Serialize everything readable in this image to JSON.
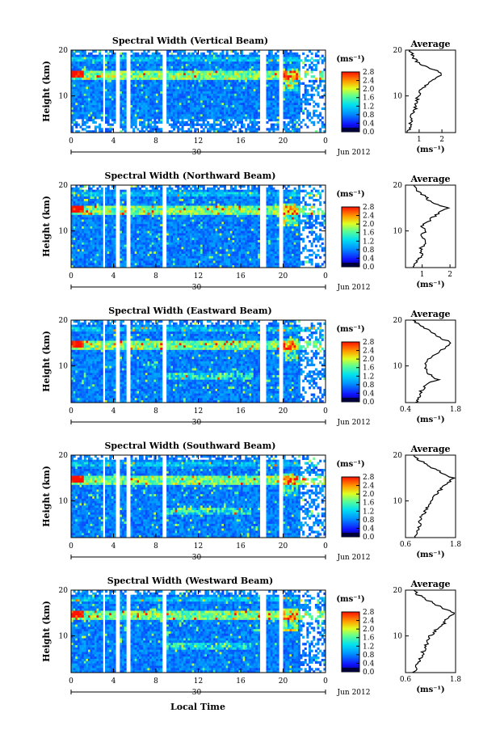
{
  "figure": {
    "xlabel": "Local Time",
    "date_label": "Jun 2012",
    "day_label": "30",
    "colorbar_unit": "(ms⁻¹)",
    "avg_title": "Average",
    "avg_xunit": "(ms⁻¹)"
  },
  "chart_data": [
    {
      "type": "heatmap",
      "title": "Spectral Width (Vertical Beam)",
      "ylabel": "Height (km)",
      "xlabel": "Local Time",
      "x_ticks": [
        "0",
        "4",
        "8",
        "12",
        "16",
        "20",
        "0"
      ],
      "y_ticks": [
        "20",
        "10"
      ],
      "ylim": [
        2,
        20
      ],
      "xlim": [
        0,
        24
      ],
      "colorbar": {
        "ticks": [
          "2.8",
          "2.4",
          "2.0",
          "1.6",
          "1.2",
          "0.8",
          "0.4",
          "0.0"
        ],
        "range": [
          0,
          2.8
        ]
      },
      "data_gaps_hours": [
        [
          3.0,
          3.2
        ],
        [
          4.2,
          4.5
        ],
        [
          5.2,
          5.5
        ],
        [
          8.6,
          9.0
        ],
        [
          17.8,
          18.3
        ],
        [
          19.7,
          20.0
        ]
      ],
      "average_profile": {
        "title": "Average",
        "x_ticks": [
          "1",
          "2"
        ],
        "xlim": [
          0.4,
          2.6
        ],
        "y_ticks": [
          "20",
          "10"
        ],
        "height_km": [
          2,
          3,
          4,
          5,
          6,
          7,
          8,
          9,
          10,
          11,
          12,
          13,
          14,
          15,
          16,
          17,
          18,
          19,
          20
        ],
        "value": [
          0.5,
          0.55,
          0.6,
          0.65,
          0.7,
          0.8,
          0.85,
          0.9,
          0.95,
          1.05,
          1.2,
          1.5,
          1.8,
          2.0,
          1.5,
          1.0,
          0.8,
          0.7,
          0.6
        ]
      }
    },
    {
      "type": "heatmap",
      "title": "Spectral Width (Northward Beam)",
      "ylabel": "Height (km)",
      "xlabel": "Local Time",
      "x_ticks": [
        "0",
        "4",
        "8",
        "12",
        "16",
        "20",
        "0"
      ],
      "y_ticks": [
        "20",
        "10"
      ],
      "ylim": [
        2,
        20
      ],
      "xlim": [
        0,
        24
      ],
      "colorbar": {
        "ticks": [
          "2.8",
          "2.4",
          "2.0",
          "1.6",
          "1.2",
          "0.8",
          "0.4",
          "0.0"
        ],
        "range": [
          0,
          2.8
        ]
      },
      "data_gaps_hours": [
        [
          3.0,
          3.2
        ],
        [
          4.2,
          4.5
        ],
        [
          5.2,
          5.5
        ],
        [
          8.6,
          9.0
        ],
        [
          17.8,
          18.3
        ],
        [
          19.7,
          20.0
        ]
      ],
      "average_profile": {
        "title": "Average",
        "x_ticks": [
          "1",
          "2"
        ],
        "xlim": [
          0.4,
          2.2
        ],
        "y_ticks": [
          "20",
          "10"
        ],
        "height_km": [
          2,
          3,
          4,
          5,
          6,
          7,
          8,
          9,
          10,
          11,
          12,
          13,
          14,
          15,
          16,
          17,
          18,
          19,
          20
        ],
        "value": [
          0.7,
          0.8,
          0.9,
          1.0,
          0.95,
          1.05,
          1.1,
          1.0,
          1.1,
          1.0,
          1.2,
          1.4,
          1.6,
          1.9,
          1.4,
          1.2,
          1.0,
          0.8,
          0.7
        ]
      }
    },
    {
      "type": "heatmap",
      "title": "Spectral Width (Eastward Beam)",
      "ylabel": "Height (km)",
      "xlabel": "Local Time",
      "x_ticks": [
        "0",
        "4",
        "8",
        "12",
        "16",
        "20",
        "0"
      ],
      "y_ticks": [
        "20",
        "10"
      ],
      "ylim": [
        2,
        20
      ],
      "xlim": [
        0,
        24
      ],
      "colorbar": {
        "ticks": [
          "2.8",
          "2.4",
          "2.0",
          "1.6",
          "1.2",
          "0.8",
          "0.4",
          "0.0"
        ],
        "range": [
          0,
          2.8
        ]
      },
      "data_gaps_hours": [
        [
          3.0,
          3.2
        ],
        [
          4.2,
          4.5
        ],
        [
          5.2,
          5.5
        ],
        [
          8.6,
          9.0
        ],
        [
          17.8,
          18.3
        ],
        [
          19.7,
          20.0
        ]
      ],
      "average_profile": {
        "title": "Average",
        "x_ticks": [
          "0.4",
          "1.8"
        ],
        "xlim": [
          0.4,
          1.8
        ],
        "y_ticks": [
          "20",
          "10"
        ],
        "height_km": [
          2,
          3,
          4,
          5,
          6,
          7,
          8,
          9,
          10,
          11,
          12,
          13,
          14,
          15,
          16,
          17,
          18,
          19,
          20
        ],
        "value": [
          0.7,
          0.75,
          0.8,
          0.9,
          1.0,
          1.3,
          1.1,
          1.0,
          0.95,
          1.0,
          1.1,
          1.3,
          1.5,
          1.7,
          1.4,
          1.2,
          1.0,
          0.8,
          0.6
        ]
      }
    },
    {
      "type": "heatmap",
      "title": "Spectral Width (Southward Beam)",
      "ylabel": "Height (km)",
      "xlabel": "Local Time",
      "x_ticks": [
        "0",
        "4",
        "8",
        "12",
        "16",
        "20",
        "0"
      ],
      "y_ticks": [
        "20",
        "10"
      ],
      "ylim": [
        2,
        20
      ],
      "xlim": [
        0,
        24
      ],
      "colorbar": {
        "ticks": [
          "2.8",
          "2.4",
          "2.0",
          "1.6",
          "1.2",
          "0.8",
          "0.4",
          "0.0"
        ],
        "range": [
          0,
          2.8
        ]
      },
      "data_gaps_hours": [
        [
          3.0,
          3.2
        ],
        [
          4.2,
          4.5
        ],
        [
          5.2,
          5.5
        ],
        [
          8.6,
          9.0
        ],
        [
          17.8,
          18.3
        ],
        [
          19.7,
          20.0
        ]
      ],
      "average_profile": {
        "title": "Average",
        "x_ticks": [
          "0.6",
          "1.8"
        ],
        "xlim": [
          0.6,
          1.8
        ],
        "y_ticks": [
          "20",
          "10"
        ],
        "height_km": [
          2,
          3,
          4,
          5,
          6,
          7,
          8,
          9,
          10,
          11,
          12,
          13,
          14,
          15,
          16,
          17,
          18,
          19,
          20
        ],
        "value": [
          0.85,
          0.9,
          0.9,
          0.95,
          0.95,
          1.0,
          1.1,
          1.15,
          1.2,
          1.25,
          1.4,
          1.5,
          1.6,
          1.75,
          1.5,
          1.3,
          1.1,
          0.9,
          0.8
        ]
      }
    },
    {
      "type": "heatmap",
      "title": "Spectral Width (Westward Beam)",
      "ylabel": "Height (km)",
      "xlabel": "Local Time",
      "x_ticks": [
        "0",
        "4",
        "8",
        "12",
        "16",
        "20",
        "0"
      ],
      "y_ticks": [
        "20",
        "10"
      ],
      "ylim": [
        2,
        20
      ],
      "xlim": [
        0,
        24
      ],
      "colorbar": {
        "ticks": [
          "2.8",
          "2.4",
          "2.0",
          "1.6",
          "1.2",
          "0.8",
          "0.4",
          "0.0"
        ],
        "range": [
          0,
          2.8
        ]
      },
      "data_gaps_hours": [
        [
          3.0,
          3.2
        ],
        [
          4.2,
          4.5
        ],
        [
          5.2,
          5.5
        ],
        [
          8.6,
          9.0
        ],
        [
          17.8,
          18.3
        ],
        [
          19.7,
          20.0
        ]
      ],
      "average_profile": {
        "title": "Average",
        "x_ticks": [
          "0.6",
          "1.8"
        ],
        "xlim": [
          0.6,
          1.8
        ],
        "y_ticks": [
          "20",
          "10"
        ],
        "height_km": [
          2,
          3,
          4,
          5,
          6,
          7,
          8,
          9,
          10,
          11,
          12,
          13,
          14,
          15,
          16,
          17,
          18,
          19,
          20
        ],
        "value": [
          0.8,
          0.85,
          0.9,
          0.95,
          1.0,
          1.05,
          1.1,
          1.15,
          1.2,
          1.3,
          1.4,
          1.55,
          1.6,
          1.75,
          1.5,
          1.3,
          1.1,
          0.9,
          0.8
        ]
      }
    }
  ]
}
